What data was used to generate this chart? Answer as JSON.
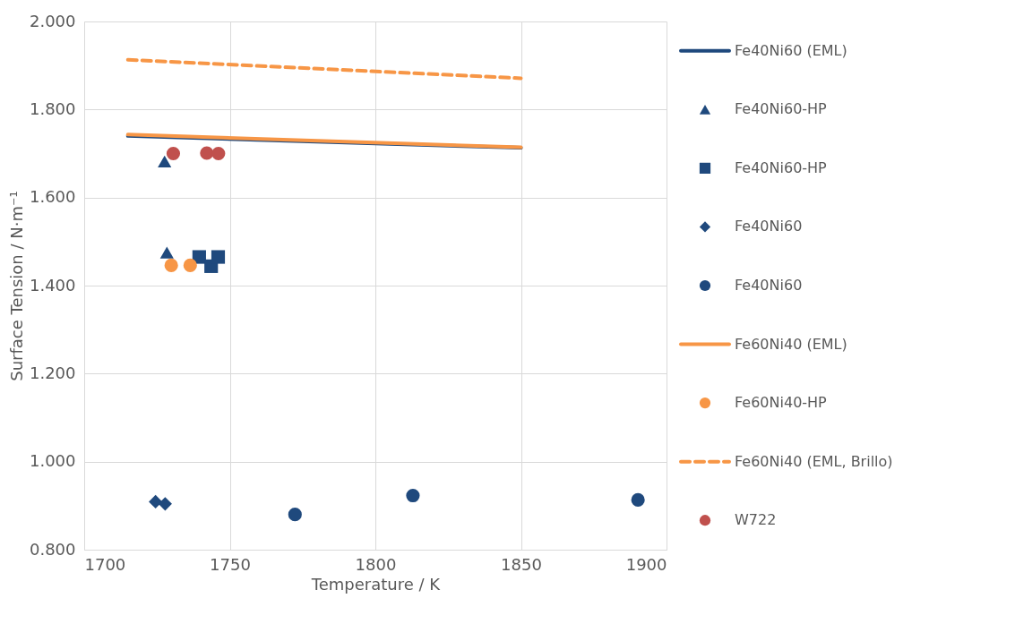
{
  "chart_data": {
    "type": "scatter",
    "xlabel": "Temperature / K",
    "ylabel": "Surface Tension / N·m⁻¹",
    "xlim": [
      1700,
      1900
    ],
    "xticks": [
      1700,
      1750,
      1800,
      1850,
      1900
    ],
    "ylim": [
      0.8,
      2.0
    ],
    "yticks": [
      {
        "value": 0.8,
        "label": "0.800"
      },
      {
        "value": 1.0,
        "label": "1.000"
      },
      {
        "value": 1.2,
        "label": "1.200"
      },
      {
        "value": 1.4,
        "label": "1.400"
      },
      {
        "value": 1.6,
        "label": "1.600"
      },
      {
        "value": 1.8,
        "label": "1.800"
      },
      {
        "value": 2.0,
        "label": "2.000"
      }
    ],
    "grid": true,
    "legend": "right",
    "series": [
      {
        "name": "Fe40Ni60 (EML)",
        "type": "line",
        "line_style": "solid",
        "marker": "none",
        "color": "#1f497d",
        "x": [
          1715,
          1850
        ],
        "values": [
          1.74,
          1.713
        ]
      },
      {
        "name": "Fe40Ni60-HP",
        "marker": "triangle",
        "color": "#1f497d",
        "x": [
          1727.6,
          1728.4
        ],
        "values": [
          1.682,
          1.475
        ]
      },
      {
        "name": "Fe40Ni60-HP",
        "marker": "square",
        "color": "#1f497d",
        "x": [
          1739.5,
          1743.6,
          1746.0
        ],
        "values": [
          1.465,
          1.444,
          1.465
        ]
      },
      {
        "name": "Fe40Ni60",
        "marker": "diamond",
        "color": "#1f497d",
        "x": [
          1724.5,
          1727.8
        ],
        "values": [
          0.909,
          0.904
        ]
      },
      {
        "name": "Fe40Ni60",
        "marker": "circle",
        "color": "#1f497d",
        "x": [
          1772.4,
          1812.9,
          1890.2
        ],
        "values": [
          0.88,
          0.923,
          0.913
        ]
      },
      {
        "name": "Fe60Ni40 (EML)",
        "type": "line",
        "line_style": "solid",
        "marker": "none",
        "color": "#f79646",
        "x": [
          1715,
          1850
        ],
        "values": [
          1.743,
          1.714
        ]
      },
      {
        "name": "Fe60Ni40-HP",
        "marker": "circle",
        "color": "#f79646",
        "x": [
          1729.9,
          1736.4
        ],
        "values": [
          1.446,
          1.446
        ]
      },
      {
        "name": "Fe60Ni40 (EML, Brillo)",
        "type": "line",
        "line_style": "dashed",
        "marker": "none",
        "color": "#f79646",
        "x": [
          1715,
          1850
        ],
        "values": [
          1.913,
          1.871
        ]
      },
      {
        "name": "W722",
        "marker": "circle",
        "color": "#c0504d",
        "x": [
          1730.6,
          1742.1,
          1746.1
        ],
        "values": [
          1.7,
          1.701,
          1.7
        ]
      }
    ]
  }
}
